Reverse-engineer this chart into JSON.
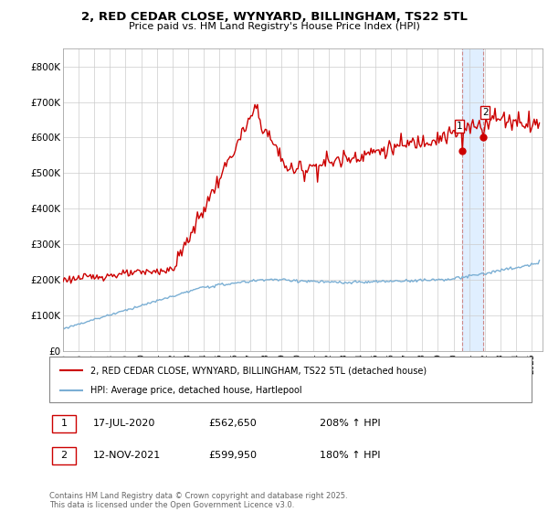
{
  "title": "2, RED CEDAR CLOSE, WYNYARD, BILLINGHAM, TS22 5TL",
  "subtitle": "Price paid vs. HM Land Registry's House Price Index (HPI)",
  "legend_line1": "2, RED CEDAR CLOSE, WYNYARD, BILLINGHAM, TS22 5TL (detached house)",
  "legend_line2": "HPI: Average price, detached house, Hartlepool",
  "sale1_label": "1",
  "sale1_date": "17-JUL-2020",
  "sale1_price": "£562,650",
  "sale1_hpi": "208% ↑ HPI",
  "sale2_label": "2",
  "sale2_date": "12-NOV-2021",
  "sale2_price": "£599,950",
  "sale2_hpi": "180% ↑ HPI",
  "footnote": "Contains HM Land Registry data © Crown copyright and database right 2025.\nThis data is licensed under the Open Government Licence v3.0.",
  "red_color": "#cc0000",
  "blue_color": "#7bafd4",
  "shaded_color": "#ddeeff",
  "shaded_border": "#cc8888",
  "ylim": [
    0,
    850000
  ],
  "yticks": [
    0,
    100000,
    200000,
    300000,
    400000,
    500000,
    600000,
    700000,
    800000
  ],
  "ytick_labels": [
    "£0",
    "£100K",
    "£200K",
    "£300K",
    "£400K",
    "£500K",
    "£600K",
    "£700K",
    "£800K"
  ]
}
